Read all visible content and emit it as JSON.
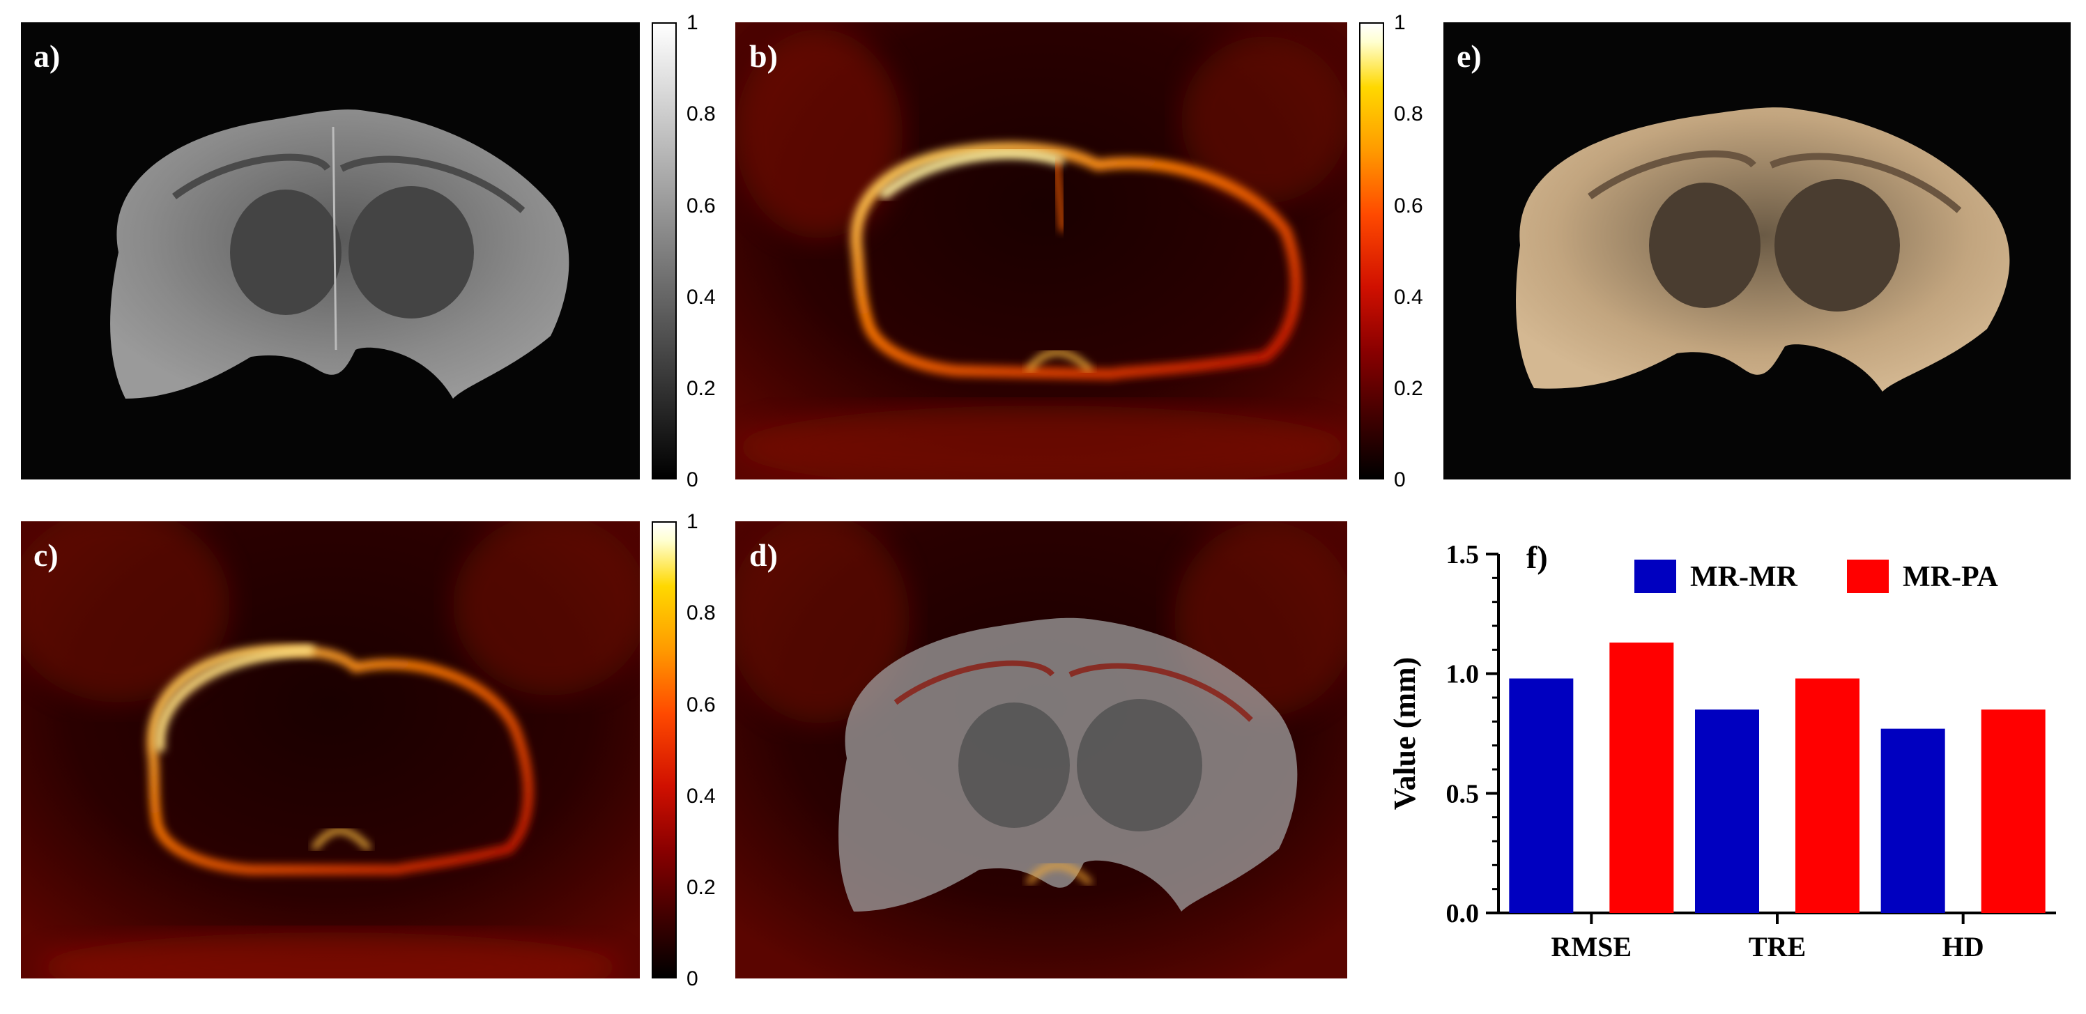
{
  "panels": {
    "a": {
      "label": "a)"
    },
    "b": {
      "label": "b)"
    },
    "c": {
      "label": "c)"
    },
    "d": {
      "label": "d)"
    },
    "e": {
      "label": "e)"
    }
  },
  "colorbar": {
    "ticks": [
      "1",
      "0.8",
      "0.6",
      "0.4",
      "0.2",
      "0"
    ],
    "colormap_gray": "gray",
    "colormap_hot": "hot"
  },
  "chart_data": {
    "type": "bar",
    "panel_label": "f)",
    "categories": [
      "RMSE",
      "TRE",
      "HD"
    ],
    "series": [
      {
        "name": "MR-MR",
        "values": [
          0.98,
          0.85,
          0.77
        ],
        "color": "#0000c0"
      },
      {
        "name": "MR-PA",
        "values": [
          1.13,
          0.98,
          0.85
        ],
        "color": "#ff0000"
      }
    ],
    "xlabel": "",
    "ylabel": "Value (mm)",
    "ylim": [
      0,
      1.5
    ],
    "yticks": [
      "0.0",
      "0.5",
      "1.0",
      "1.5"
    ],
    "legend": "top",
    "grid": false
  }
}
